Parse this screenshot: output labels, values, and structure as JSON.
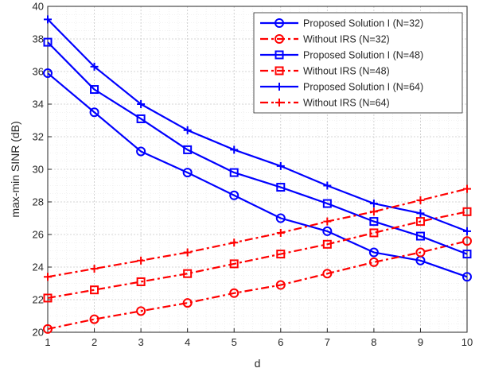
{
  "chart_data": {
    "type": "line",
    "title": "",
    "xlabel": "d",
    "ylabel": "max-min SINR (dB)",
    "xlim": [
      1,
      10
    ],
    "ylim": [
      20,
      40
    ],
    "xticks": [
      "1",
      "2",
      "3",
      "4",
      "5",
      "6",
      "7",
      "8",
      "9",
      "10"
    ],
    "yticks": [
      "20",
      "22",
      "24",
      "26",
      "28",
      "30",
      "32",
      "34",
      "36",
      "38",
      "40"
    ],
    "grid": true,
    "legend_position": "top-right",
    "x": [
      1,
      2,
      3,
      4,
      5,
      6,
      7,
      8,
      9,
      10
    ],
    "series": [
      {
        "name": "Proposed Solution I (N=32)",
        "color": "#0000ff",
        "line": "solid",
        "marker": "circle",
        "values": [
          35.9,
          33.5,
          31.1,
          29.8,
          28.4,
          27.0,
          26.2,
          24.9,
          24.4,
          23.4
        ]
      },
      {
        "name": "Without IRS  (N=32)",
        "color": "#ff0000",
        "line": "dashdot",
        "marker": "circle",
        "values": [
          20.2,
          20.8,
          21.3,
          21.8,
          22.4,
          22.9,
          23.6,
          24.3,
          24.9,
          25.6
        ]
      },
      {
        "name": "Proposed Solution I (N=48)",
        "color": "#0000ff",
        "line": "solid",
        "marker": "square",
        "values": [
          37.8,
          34.9,
          33.1,
          31.2,
          29.8,
          28.9,
          27.9,
          26.8,
          25.9,
          24.8
        ]
      },
      {
        "name": "Without IRS  (N=48)",
        "color": "#ff0000",
        "line": "dashdot",
        "marker": "square",
        "values": [
          22.1,
          22.6,
          23.1,
          23.6,
          24.2,
          24.8,
          25.4,
          26.1,
          26.8,
          27.4
        ]
      },
      {
        "name": "Proposed Solution I (N=64)",
        "color": "#0000ff",
        "line": "solid",
        "marker": "plus",
        "values": [
          39.2,
          36.3,
          34.0,
          32.4,
          31.2,
          30.2,
          29.0,
          27.9,
          27.3,
          26.2
        ]
      },
      {
        "name": "Without IRS  (N=64)",
        "color": "#ff0000",
        "line": "dashdot",
        "marker": "plus",
        "values": [
          23.4,
          23.9,
          24.4,
          24.9,
          25.5,
          26.1,
          26.8,
          27.4,
          28.1,
          28.8
        ]
      }
    ]
  }
}
